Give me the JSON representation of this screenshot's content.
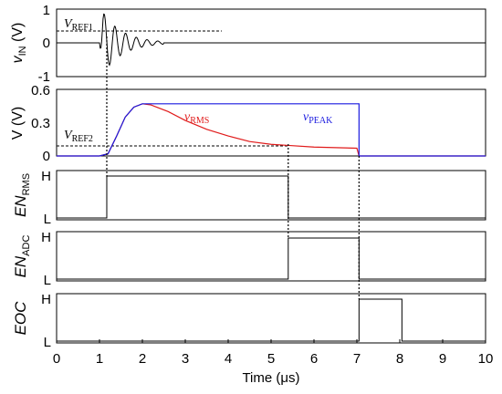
{
  "chart_data": {
    "type": "line",
    "x_axis": {
      "label": "Time (μs)",
      "range": [
        0,
        10
      ],
      "ticks": [
        "0",
        "1",
        "2",
        "3",
        "4",
        "5",
        "6",
        "7",
        "8",
        "9",
        "10"
      ]
    },
    "panels": [
      {
        "id": "vin",
        "ylabel": {
          "main": "v",
          "sub": "IN",
          "suffix": " (V)"
        },
        "ylim": [
          -1,
          1
        ],
        "yticks": [
          "1",
          "0",
          "-1"
        ],
        "annotation": {
          "main": "V",
          "sub": "REF1"
        },
        "threshold": {
          "y": 0.35,
          "x_range": [
            0,
            3.85
          ]
        },
        "series": [
          {
            "name": "vIN burst",
            "x_start": 1.0,
            "x_end": 2.5,
            "values_desc": "damped oscillation, peak ~1"
          }
        ]
      },
      {
        "id": "v",
        "ylabel": {
          "main": "V",
          "sub": "",
          "suffix": " (V)"
        },
        "ylim": [
          0,
          0.6
        ],
        "yticks": [
          "0.6",
          "0.3",
          "0"
        ],
        "annotation": {
          "main": "V",
          "sub": "REF2"
        },
        "threshold": {
          "y": 0.09,
          "x_range": [
            0,
            5.4
          ]
        },
        "series": [
          {
            "name": "vRMS",
            "color": "#e01a1a",
            "label": {
              "main": "v",
              "sub": "RMS"
            },
            "points": [
              [
                0,
                0
              ],
              [
                1.0,
                0
              ],
              [
                1.2,
                0.02
              ],
              [
                1.4,
                0.18
              ],
              [
                1.6,
                0.35
              ],
              [
                1.8,
                0.44
              ],
              [
                2.0,
                0.47
              ],
              [
                2.2,
                0.46
              ],
              [
                2.6,
                0.4
              ],
              [
                3.0,
                0.32
              ],
              [
                3.5,
                0.24
              ],
              [
                4.0,
                0.18
              ],
              [
                4.5,
                0.13
              ],
              [
                5.0,
                0.105
              ],
              [
                5.4,
                0.095
              ],
              [
                6.0,
                0.08
              ],
              [
                7.0,
                0.07
              ],
              [
                7.05,
                0.0
              ],
              [
                10.0,
                0.0
              ]
            ]
          },
          {
            "name": "vPEAK",
            "color": "#1a1adf",
            "label": {
              "main": "v",
              "sub": "PEAK"
            },
            "points": [
              [
                0,
                0
              ],
              [
                1.0,
                0
              ],
              [
                1.2,
                0.02
              ],
              [
                1.4,
                0.18
              ],
              [
                1.6,
                0.35
              ],
              [
                1.8,
                0.44
              ],
              [
                2.0,
                0.47
              ],
              [
                2.1,
                0.47
              ],
              [
                7.05,
                0.47
              ],
              [
                7.05,
                0.0
              ],
              [
                10.0,
                0.0
              ]
            ]
          }
        ]
      },
      {
        "id": "enrms",
        "ylabel": {
          "main": "EN",
          "sub": "RMS",
          "suffix": ""
        },
        "yticks": [
          "H",
          "L"
        ],
        "digital": [
          [
            0,
            "L"
          ],
          [
            1.17,
            "H"
          ],
          [
            5.4,
            "L"
          ]
        ]
      },
      {
        "id": "enadc",
        "ylabel": {
          "main": "EN",
          "sub": "ADC",
          "suffix": ""
        },
        "yticks": [
          "H",
          "L"
        ],
        "digital": [
          [
            0,
            "L"
          ],
          [
            5.4,
            "H"
          ],
          [
            7.05,
            "L"
          ]
        ]
      },
      {
        "id": "eoc",
        "ylabel": {
          "main": "EOC",
          "sub": "",
          "suffix": ""
        },
        "yticks": [
          "H",
          "L"
        ],
        "digital": [
          [
            0,
            "L"
          ],
          [
            7.05,
            "H"
          ],
          [
            8.05,
            "L"
          ]
        ]
      }
    ],
    "grid": false,
    "legend": "inline-labels"
  }
}
